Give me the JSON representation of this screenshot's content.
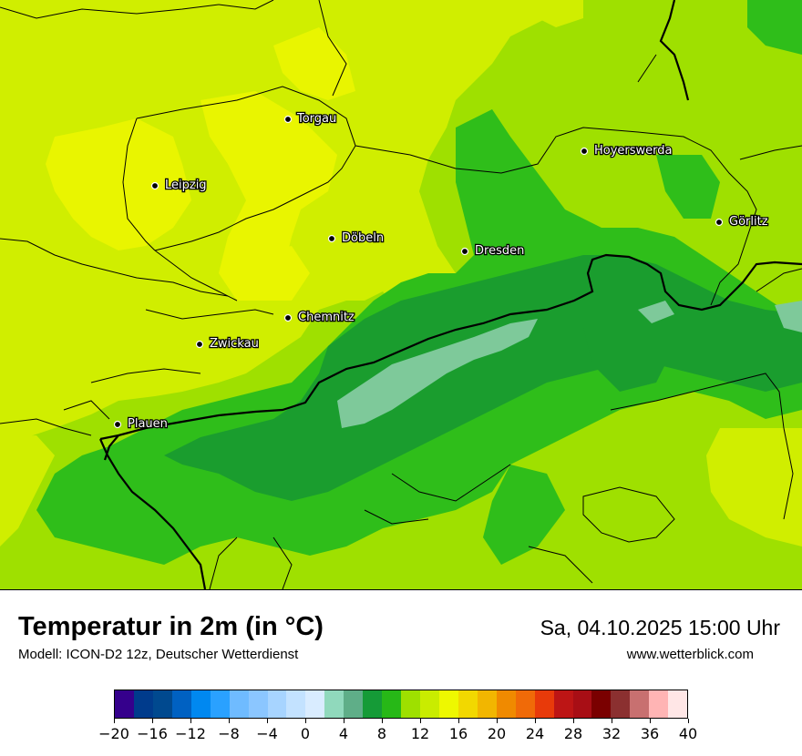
{
  "map": {
    "cities": [
      {
        "name": "Torgau",
        "marker": "black-dot"
      },
      {
        "name": "Leipzig",
        "marker": "black-dot"
      },
      {
        "name": "Hoyerswerda",
        "marker": "black-dot"
      },
      {
        "name": "Görlitz",
        "marker": "black-dot"
      },
      {
        "name": "Döbeln",
        "marker": "black-dot"
      },
      {
        "name": "Dresden",
        "marker": "black-dot"
      },
      {
        "name": "Chemnitz",
        "marker": "black-dot"
      },
      {
        "name": "Zwickau",
        "marker": "black-dot"
      },
      {
        "name": "Plauen",
        "marker": "black-dot"
      }
    ],
    "fill_colors": {
      "t16": "#e9f500",
      "t14": "#d0ee00",
      "t12": "#9fe000",
      "t10": "#2fbe1a",
      "t8": "#1a9d2e",
      "t4": "#7ec99a",
      "border": "#000000"
    }
  },
  "footer": {
    "title": "Temperatur in 2m (in °C)",
    "model": "Modell: ICON-D2 12z, Deutscher Wetterdienst",
    "datetime": "Sa, 04.10.2025 15:00 Uhr",
    "website": "www.wetterblick.com"
  },
  "legend": {
    "min": -20,
    "max": 40,
    "step": 2,
    "colors": [
      "#35008c",
      "#003b8c",
      "#00498f",
      "#0061c2",
      "#0088f0",
      "#2aa1ff",
      "#6fbbff",
      "#8bc6ff",
      "#a7d4ff",
      "#c3e2ff",
      "#d9ecff",
      "#90d9bc",
      "#5fae88",
      "#159b37",
      "#27b817",
      "#9ee000",
      "#c9ec00",
      "#eef800",
      "#f2d800",
      "#f2b600",
      "#f08a00",
      "#f06a08",
      "#e83a0a",
      "#bd1515",
      "#a80e15",
      "#7a0000",
      "#8b3030",
      "#c87070",
      "#ffb4b4",
      "#ffe6e6"
    ],
    "tick_labels": [
      "−20",
      "−16",
      "−12",
      "−8",
      "−4",
      "0",
      "4",
      "8",
      "12",
      "16",
      "20",
      "24",
      "28",
      "32",
      "36",
      "40"
    ]
  }
}
